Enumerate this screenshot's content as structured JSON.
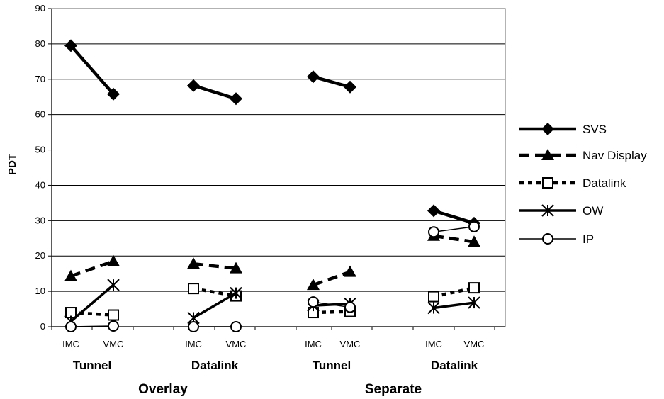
{
  "chart_data": {
    "type": "line",
    "ylabel": "PDT",
    "ylim": [
      0,
      90
    ],
    "yticks": [
      0,
      10,
      20,
      30,
      40,
      50,
      60,
      70,
      80,
      90
    ],
    "grid": true,
    "legend_position": "right",
    "x_inner_labels": [
      "IMC",
      "VMC",
      "IMC",
      "VMC",
      "IMC",
      "VMC",
      "IMC",
      "VMC"
    ],
    "display_groups": [
      "Tunnel",
      "Datalink",
      "Tunnel",
      "Datalink"
    ],
    "format_groups": [
      "Overlay",
      "Separate"
    ],
    "series": [
      {
        "name": "SVS",
        "marker": "diamond",
        "line": "thick-solid",
        "values": [
          79.5,
          65.8,
          68.2,
          64.5,
          70.7,
          67.8,
          32.8,
          29.3
        ]
      },
      {
        "name": "Nav Display",
        "marker": "triangle",
        "line": "thick-dash",
        "values": [
          14.3,
          18.5,
          17.8,
          16.5,
          11.8,
          15.5,
          25.7,
          24.0
        ]
      },
      {
        "name": "Datalink",
        "marker": "square",
        "line": "short-dash",
        "values": [
          4.0,
          3.3,
          10.8,
          8.7,
          4.0,
          4.3,
          8.5,
          11.0
        ]
      },
      {
        "name": "OW",
        "marker": "asterisk",
        "line": "solid",
        "values": [
          1.5,
          11.8,
          2.5,
          9.5,
          6.0,
          6.5,
          5.3,
          6.8
        ]
      },
      {
        "name": "IP",
        "marker": "circle",
        "line": "thin-solid",
        "values": [
          0,
          0.2,
          0,
          0,
          7.0,
          5.5,
          26.8,
          28.3
        ]
      }
    ]
  }
}
